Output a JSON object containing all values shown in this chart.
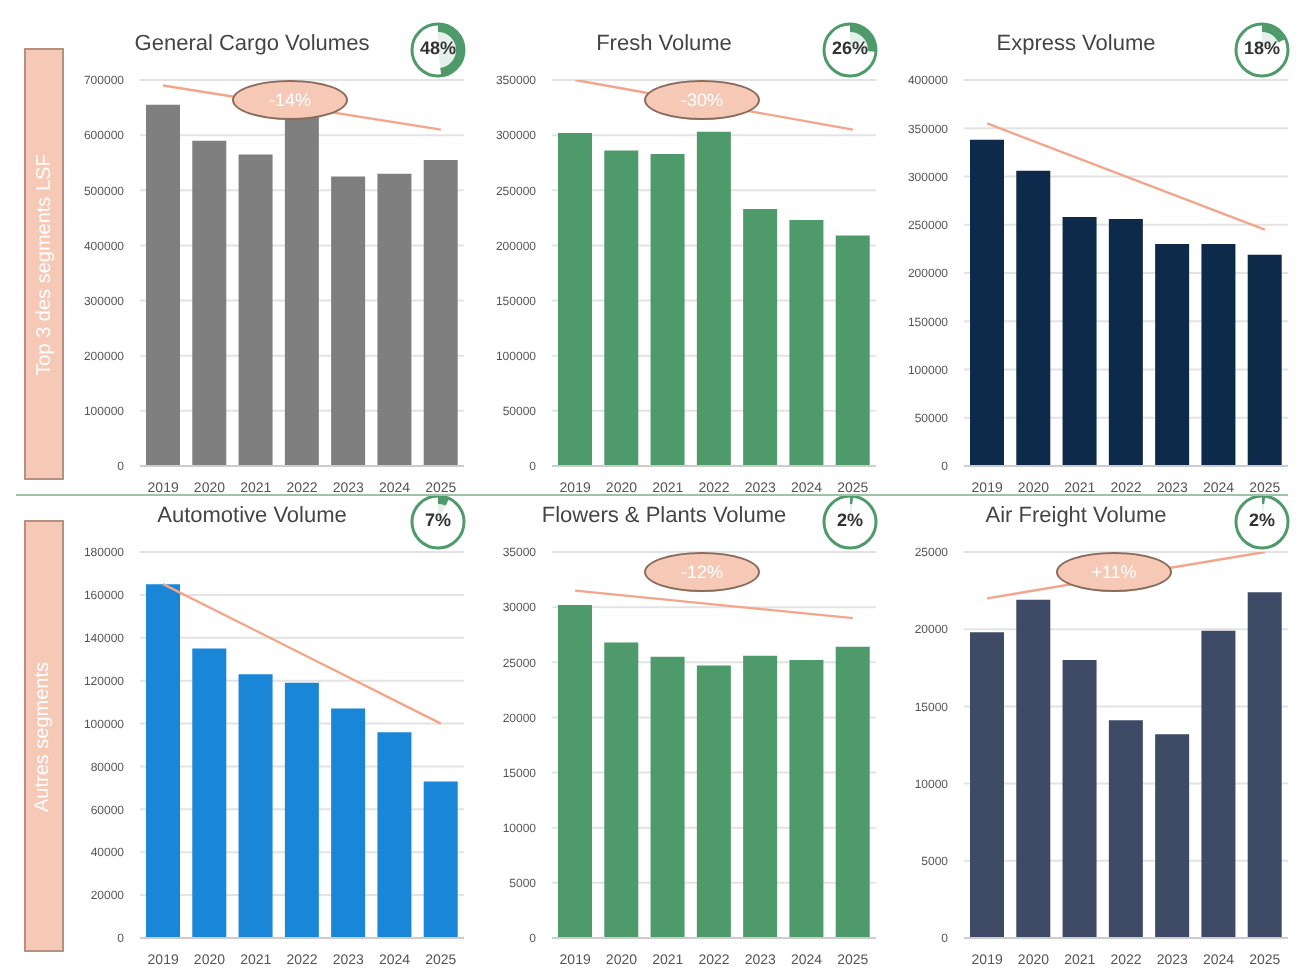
{
  "chart_data": [
    {
      "type": "bar",
      "title": "General Cargo Volumes",
      "categories": [
        "2019",
        "2020",
        "2021",
        "2022",
        "2023",
        "2024",
        "2025"
      ],
      "series": [
        {
          "type": "bar",
          "color": "#7f7f7f",
          "values": [
            655000,
            590000,
            565000,
            635000,
            525000,
            530000,
            555000
          ]
        },
        {
          "type": "line",
          "color": "#f2a58a",
          "values": [
            690000,
            null,
            null,
            null,
            null,
            null,
            610000
          ]
        }
      ],
      "ylim": [
        0,
        700000
      ],
      "yticks": [
        0,
        100000,
        200000,
        300000,
        400000,
        500000,
        600000,
        700000
      ],
      "grid": "y",
      "legend": false,
      "annotations": [
        "48%",
        "-14%",
        "Top 3 des segments LSF"
      ]
    },
    {
      "type": "bar",
      "title": "Fresh Volume",
      "categories": [
        "2019",
        "2020",
        "2021",
        "2022",
        "2023",
        "2024",
        "2025"
      ],
      "series": [
        {
          "type": "bar",
          "color": "#4e9a6a",
          "values": [
            302000,
            286000,
            283000,
            303000,
            233000,
            223000,
            209000
          ]
        },
        {
          "type": "line",
          "color": "#f2a58a",
          "values": [
            350000,
            null,
            null,
            null,
            null,
            null,
            305000
          ]
        }
      ],
      "ylim": [
        0,
        350000
      ],
      "yticks": [
        0,
        50000,
        100000,
        150000,
        200000,
        250000,
        300000,
        350000
      ],
      "grid": "y",
      "legend": false,
      "annotations": [
        "26%",
        "-30%"
      ]
    },
    {
      "type": "bar",
      "title": "Express Volume",
      "categories": [
        "2019",
        "2020",
        "2021",
        "2022",
        "2023",
        "2024",
        "2025"
      ],
      "series": [
        {
          "type": "bar",
          "color": "#0d2a4a",
          "values": [
            338000,
            306000,
            258000,
            256000,
            230000,
            230000,
            219000
          ]
        },
        {
          "type": "line",
          "color": "#f2a58a",
          "values": [
            355000,
            null,
            null,
            null,
            null,
            null,
            245000
          ]
        }
      ],
      "ylim": [
        0,
        400000
      ],
      "yticks": [
        0,
        50000,
        100000,
        150000,
        200000,
        250000,
        300000,
        350000,
        400000
      ],
      "grid": "y",
      "legend": false,
      "annotations": [
        "18%"
      ]
    },
    {
      "type": "bar",
      "title": "Automotive Volume",
      "categories": [
        "2019",
        "2020",
        "2021",
        "2022",
        "2023",
        "2024",
        "2025"
      ],
      "series": [
        {
          "type": "bar",
          "color": "#1a86d8",
          "values": [
            165000,
            135000,
            123000,
            119000,
            107000,
            96000,
            73000
          ]
        },
        {
          "type": "line",
          "color": "#f2a58a",
          "values": [
            165000,
            null,
            null,
            null,
            null,
            null,
            100000
          ]
        }
      ],
      "ylim": [
        0,
        180000
      ],
      "yticks": [
        0,
        20000,
        40000,
        60000,
        80000,
        100000,
        120000,
        140000,
        160000,
        180000
      ],
      "grid": "y",
      "legend": false,
      "annotations": [
        "7%",
        "Autres segments"
      ]
    },
    {
      "type": "bar",
      "title": "Flowers & Plants Volume",
      "categories": [
        "2019",
        "2020",
        "2021",
        "2022",
        "2023",
        "2024",
        "2025"
      ],
      "series": [
        {
          "type": "bar",
          "color": "#4e9a6a",
          "values": [
            30200,
            26800,
            25500,
            24700,
            25600,
            25200,
            26400
          ]
        },
        {
          "type": "line",
          "color": "#f2a58a",
          "values": [
            31500,
            null,
            null,
            null,
            null,
            null,
            29000
          ]
        }
      ],
      "ylim": [
        0,
        35000
      ],
      "yticks": [
        0,
        5000,
        10000,
        15000,
        20000,
        25000,
        30000,
        35000
      ],
      "grid": "y",
      "legend": false,
      "annotations": [
        "2%",
        "-12%"
      ]
    },
    {
      "type": "bar",
      "title": "Air Freight Volume",
      "categories": [
        "2019",
        "2020",
        "2021",
        "2022",
        "2023",
        "2024",
        "2025"
      ],
      "series": [
        {
          "type": "bar",
          "color": "#3f4a66",
          "values": [
            19800,
            21900,
            18000,
            14100,
            13200,
            19900,
            22400
          ]
        },
        {
          "type": "line",
          "color": "#f2a58a",
          "values": [
            22000,
            null,
            null,
            null,
            null,
            null,
            25000
          ]
        }
      ],
      "ylim": [
        0,
        25000
      ],
      "yticks": [
        0,
        5000,
        10000,
        15000,
        20000,
        25000
      ],
      "grid": "y",
      "legend": false,
      "annotations": [
        "2%",
        "+11%"
      ]
    }
  ]
}
